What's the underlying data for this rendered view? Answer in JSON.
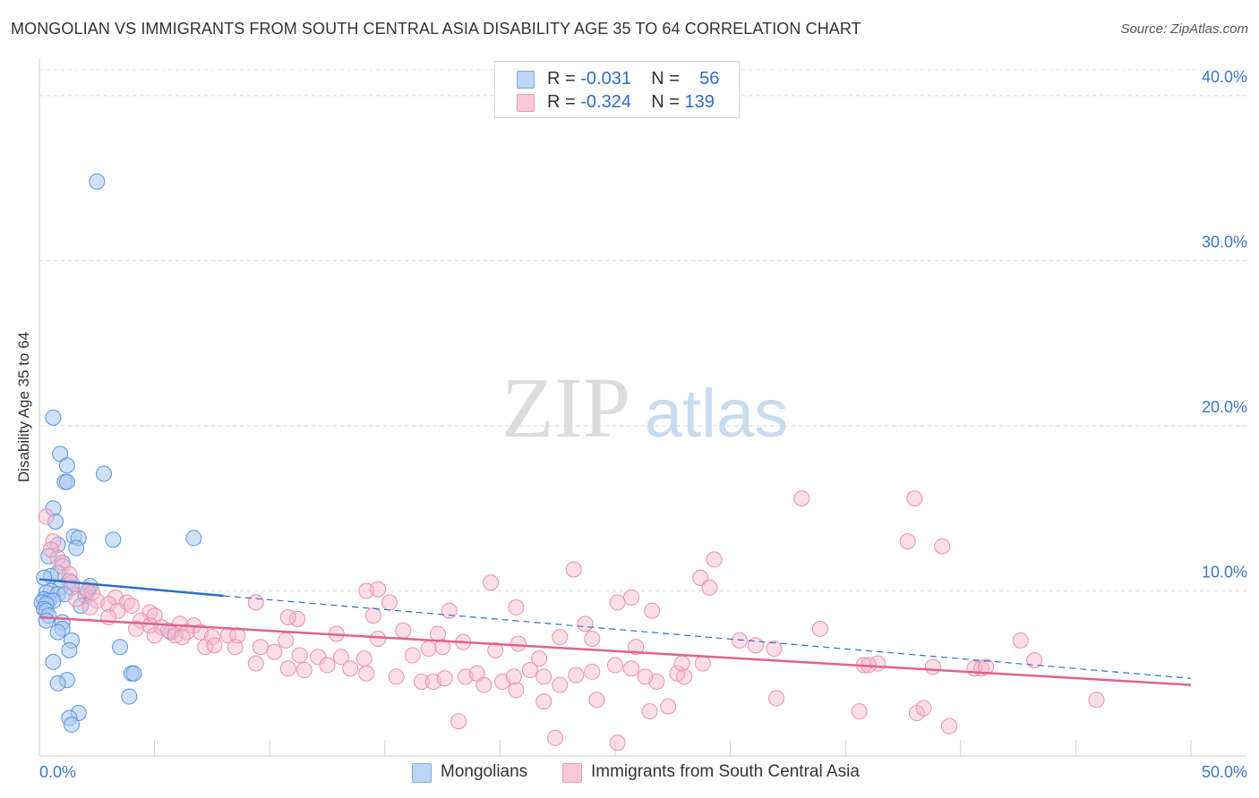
{
  "title": "MONGOLIAN VS IMMIGRANTS FROM SOUTH CENTRAL ASIA DISABILITY AGE 35 TO 64 CORRELATION CHART",
  "source": "Source: ZipAtlas.com",
  "watermark": {
    "zip": "ZIP",
    "atlas": "atlas"
  },
  "legend": {
    "rows": [
      {
        "r_label": "R =",
        "r_value": "-0.031",
        "n_label": "N =",
        "n_value": "56",
        "color": "#a9c8f0"
      },
      {
        "r_label": "R =",
        "r_value": "-0.324",
        "n_label": "N =",
        "n_value": "139",
        "color": "#f6b6cb"
      }
    ]
  },
  "bottom_legend": [
    {
      "label": "Mongolians",
      "color": "#a9c8f0"
    },
    {
      "label": "Immigrants from South Central Asia",
      "color": "#f6b6cb"
    }
  ],
  "chart_data": {
    "type": "scatter",
    "title": "MONGOLIAN VS IMMIGRANTS FROM SOUTH CENTRAL ASIA DISABILITY AGE 35 TO 64 CORRELATION CHART",
    "xlabel": "",
    "ylabel": "Disability Age 35 to 64",
    "xlim": [
      0,
      50
    ],
    "ylim": [
      0,
      42
    ],
    "x_tick_labels": [
      "0.0%",
      "50.0%"
    ],
    "y_ticks": [
      10,
      20,
      30,
      40
    ],
    "y_tick_labels": [
      "10.0%",
      "20.0%",
      "30.0%",
      "40.0%"
    ],
    "grid": "horizontal dashed",
    "legend_position": "top-center",
    "colors": {
      "mongolians": "#5a95de",
      "immigrants": "#ee8fb0",
      "mongolians_line": "#2f6fc7",
      "immigrants_line": "#e0628e"
    },
    "series": [
      {
        "name": "Mongolians",
        "r": -0.031,
        "n": 56,
        "trend": {
          "x": [
            0,
            8
          ],
          "y": [
            10.7,
            9.7
          ],
          "dashed_extension": {
            "x": [
              8,
              50
            ],
            "y": [
              9.7,
              4.7
            ]
          }
        },
        "points": [
          [
            2.5,
            34.8
          ],
          [
            0.6,
            20.5
          ],
          [
            0.9,
            18.3
          ],
          [
            1.2,
            17.6
          ],
          [
            2.8,
            17.1
          ],
          [
            1.1,
            16.6
          ],
          [
            1.2,
            16.6
          ],
          [
            0.6,
            15.0
          ],
          [
            0.7,
            14.2
          ],
          [
            1.5,
            13.3
          ],
          [
            1.7,
            13.2
          ],
          [
            3.2,
            13.1
          ],
          [
            6.7,
            13.2
          ],
          [
            0.8,
            12.8
          ],
          [
            1.6,
            12.6
          ],
          [
            0.4,
            12.1
          ],
          [
            1.0,
            11.7
          ],
          [
            0.8,
            11.1
          ],
          [
            0.5,
            10.9
          ],
          [
            0.2,
            10.8
          ],
          [
            1.3,
            10.6
          ],
          [
            2.2,
            10.3
          ],
          [
            0.9,
            10.2
          ],
          [
            1.4,
            10.2
          ],
          [
            0.5,
            10.0
          ],
          [
            0.3,
            9.9
          ],
          [
            0.8,
            9.8
          ],
          [
            1.1,
            9.8
          ],
          [
            2.0,
            9.7
          ],
          [
            0.2,
            9.5
          ],
          [
            0.4,
            9.4
          ],
          [
            0.6,
            9.4
          ],
          [
            0.1,
            9.3
          ],
          [
            0.3,
            9.2
          ],
          [
            1.8,
            9.1
          ],
          [
            0.2,
            8.9
          ],
          [
            0.3,
            8.8
          ],
          [
            0.4,
            8.5
          ],
          [
            0.3,
            8.2
          ],
          [
            1.0,
            8.1
          ],
          [
            1.0,
            7.7
          ],
          [
            0.8,
            7.5
          ],
          [
            5.7,
            7.5
          ],
          [
            1.4,
            7.0
          ],
          [
            3.5,
            6.6
          ],
          [
            1.3,
            6.4
          ],
          [
            0.6,
            5.7
          ],
          [
            4.0,
            5.0
          ],
          [
            4.1,
            5.0
          ],
          [
            1.2,
            4.6
          ],
          [
            0.8,
            4.4
          ],
          [
            3.9,
            3.6
          ],
          [
            1.7,
            2.6
          ],
          [
            1.3,
            2.3
          ],
          [
            1.4,
            1.9
          ],
          [
            2.1,
            10.0
          ]
        ]
      },
      {
        "name": "Immigrants from South Central Asia",
        "r": -0.324,
        "n": 139,
        "trend": {
          "x": [
            0,
            50
          ],
          "y": [
            8.4,
            4.3
          ]
        },
        "points": [
          [
            0.3,
            14.5
          ],
          [
            0.6,
            13.0
          ],
          [
            0.5,
            12.5
          ],
          [
            0.8,
            12.0
          ],
          [
            1.0,
            11.5
          ],
          [
            1.3,
            11.0
          ],
          [
            1.4,
            10.5
          ],
          [
            2.0,
            10.1
          ],
          [
            2.3,
            9.9
          ],
          [
            3.3,
            9.6
          ],
          [
            1.6,
            9.5
          ],
          [
            2.5,
            9.4
          ],
          [
            3.0,
            9.2
          ],
          [
            3.8,
            9.3
          ],
          [
            4.0,
            9.1
          ],
          [
            2.2,
            9.0
          ],
          [
            3.4,
            8.8
          ],
          [
            4.8,
            8.7
          ],
          [
            5.0,
            8.5
          ],
          [
            3.0,
            8.4
          ],
          [
            4.4,
            8.2
          ],
          [
            6.1,
            8.0
          ],
          [
            6.7,
            7.9
          ],
          [
            4.8,
            7.9
          ],
          [
            5.3,
            7.8
          ],
          [
            4.2,
            7.7
          ],
          [
            5.6,
            7.6
          ],
          [
            6.4,
            7.5
          ],
          [
            7.0,
            7.5
          ],
          [
            5.0,
            7.3
          ],
          [
            5.9,
            7.3
          ],
          [
            6.2,
            7.2
          ],
          [
            7.5,
            7.2
          ],
          [
            8.2,
            7.3
          ],
          [
            8.6,
            7.3
          ],
          [
            7.2,
            6.6
          ],
          [
            7.6,
            6.7
          ],
          [
            8.5,
            6.6
          ],
          [
            9.6,
            6.6
          ],
          [
            10.7,
            7.0
          ],
          [
            10.2,
            6.3
          ],
          [
            11.3,
            6.1
          ],
          [
            12.1,
            6.0
          ],
          [
            13.1,
            6.0
          ],
          [
            14.1,
            5.9
          ],
          [
            9.4,
            5.6
          ],
          [
            10.8,
            5.3
          ],
          [
            11.5,
            5.2
          ],
          [
            12.5,
            5.5
          ],
          [
            13.5,
            5.3
          ],
          [
            14.2,
            5.0
          ],
          [
            15.5,
            4.8
          ],
          [
            16.6,
            4.5
          ],
          [
            17.1,
            4.5
          ],
          [
            17.6,
            4.7
          ],
          [
            18.5,
            4.8
          ],
          [
            19.0,
            5.0
          ],
          [
            19.3,
            4.3
          ],
          [
            20.1,
            4.5
          ],
          [
            20.7,
            4.0
          ],
          [
            21.3,
            5.2
          ],
          [
            21.9,
            4.8
          ],
          [
            22.6,
            4.3
          ],
          [
            23.3,
            4.9
          ],
          [
            24.0,
            5.1
          ],
          [
            24.2,
            3.4
          ],
          [
            25.0,
            5.5
          ],
          [
            25.7,
            5.3
          ],
          [
            26.5,
            2.7
          ],
          [
            26.8,
            4.5
          ],
          [
            27.3,
            3.0
          ],
          [
            25.9,
            6.6
          ],
          [
            24.0,
            7.1
          ],
          [
            22.6,
            7.2
          ],
          [
            23.7,
            8.0
          ],
          [
            20.8,
            6.8
          ],
          [
            18.4,
            6.9
          ],
          [
            17.3,
            7.4
          ],
          [
            15.8,
            7.6
          ],
          [
            14.7,
            7.1
          ],
          [
            12.9,
            7.4
          ],
          [
            11.2,
            8.3
          ],
          [
            10.8,
            8.4
          ],
          [
            9.4,
            9.3
          ],
          [
            14.5,
            8.5
          ],
          [
            15.2,
            9.3
          ],
          [
            17.8,
            8.8
          ],
          [
            17.5,
            6.6
          ],
          [
            16.2,
            6.1
          ],
          [
            16.9,
            6.5
          ],
          [
            19.8,
            6.4
          ],
          [
            20.6,
            4.8
          ],
          [
            21.9,
            3.3
          ],
          [
            22.4,
            1.1
          ],
          [
            18.2,
            2.1
          ],
          [
            26.6,
            8.8
          ],
          [
            25.7,
            9.6
          ],
          [
            25.1,
            9.3
          ],
          [
            23.2,
            11.3
          ],
          [
            19.6,
            10.5
          ],
          [
            14.2,
            10.0
          ],
          [
            14.7,
            10.1
          ],
          [
            27.7,
            5.0
          ],
          [
            28.8,
            5.6
          ],
          [
            28.0,
            4.8
          ],
          [
            30.4,
            7.0
          ],
          [
            31.1,
            6.7
          ],
          [
            31.9,
            6.5
          ],
          [
            32.0,
            3.5
          ],
          [
            33.1,
            15.6
          ],
          [
            33.9,
            7.7
          ],
          [
            35.8,
            5.5
          ],
          [
            36.4,
            5.6
          ],
          [
            35.6,
            2.7
          ],
          [
            38.0,
            15.6
          ],
          [
            37.7,
            13.0
          ],
          [
            39.2,
            12.7
          ],
          [
            38.1,
            2.6
          ],
          [
            38.4,
            2.9
          ],
          [
            38.8,
            5.4
          ],
          [
            39.5,
            1.8
          ],
          [
            40.6,
            5.3
          ],
          [
            40.9,
            5.3
          ],
          [
            41.1,
            5.4
          ],
          [
            42.6,
            7.0
          ],
          [
            43.2,
            5.8
          ],
          [
            45.9,
            3.4
          ],
          [
            36.0,
            5.5
          ],
          [
            29.3,
            11.9
          ],
          [
            28.7,
            10.8
          ],
          [
            29.1,
            10.2
          ],
          [
            27.9,
            5.6
          ],
          [
            26.3,
            4.8
          ],
          [
            25.1,
            0.8
          ],
          [
            20.7,
            9.0
          ],
          [
            21.7,
            5.9
          ]
        ]
      }
    ]
  }
}
